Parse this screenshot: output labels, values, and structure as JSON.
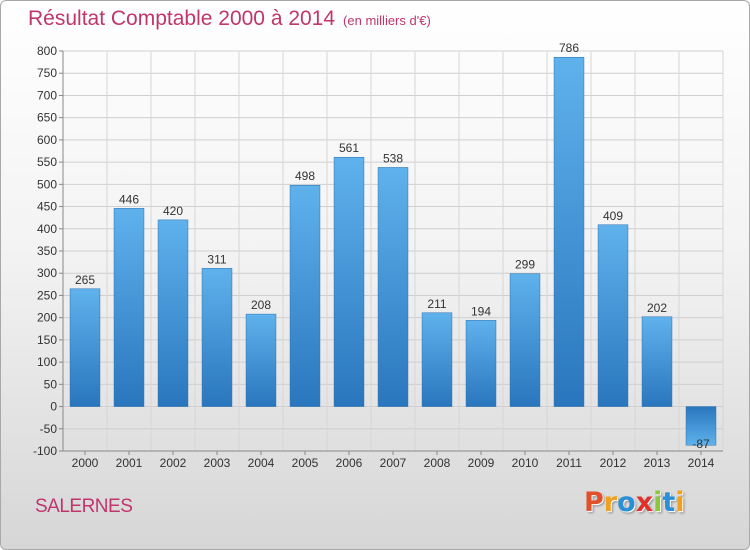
{
  "title": {
    "main": "Résultat Comptable 2000 à 2014",
    "unit": "(en milliers d'€)"
  },
  "commune": "SALERNES",
  "logo": {
    "letters": [
      "P",
      "r",
      "o",
      "x",
      "i",
      "t",
      "i"
    ],
    "colors": [
      "#e0502a",
      "#f0a020",
      "#2a8fd6",
      "#e0302a",
      "#8cc63f",
      "#2a8fd6",
      "#f0a020"
    ]
  },
  "chart_data": {
    "type": "bar",
    "categories": [
      "2000",
      "2001",
      "2002",
      "2003",
      "2004",
      "2005",
      "2006",
      "2007",
      "2008",
      "2009",
      "2010",
      "2011",
      "2012",
      "2013",
      "2014"
    ],
    "values": [
      265,
      446,
      420,
      311,
      208,
      498,
      561,
      538,
      211,
      194,
      299,
      786,
      409,
      202,
      -87
    ],
    "value_labels": [
      "265",
      "446",
      "420",
      "311",
      "208",
      "498",
      "561",
      "538",
      "211",
      "194",
      "299",
      "786",
      "409",
      "202",
      "-87"
    ],
    "ylim": [
      -100,
      800
    ],
    "yticks": [
      -100,
      -50,
      0,
      50,
      100,
      150,
      200,
      250,
      300,
      350,
      400,
      450,
      500,
      550,
      600,
      650,
      700,
      750,
      800
    ],
    "grid": true,
    "legend": "none",
    "bar_color": "#3a8fd6"
  }
}
